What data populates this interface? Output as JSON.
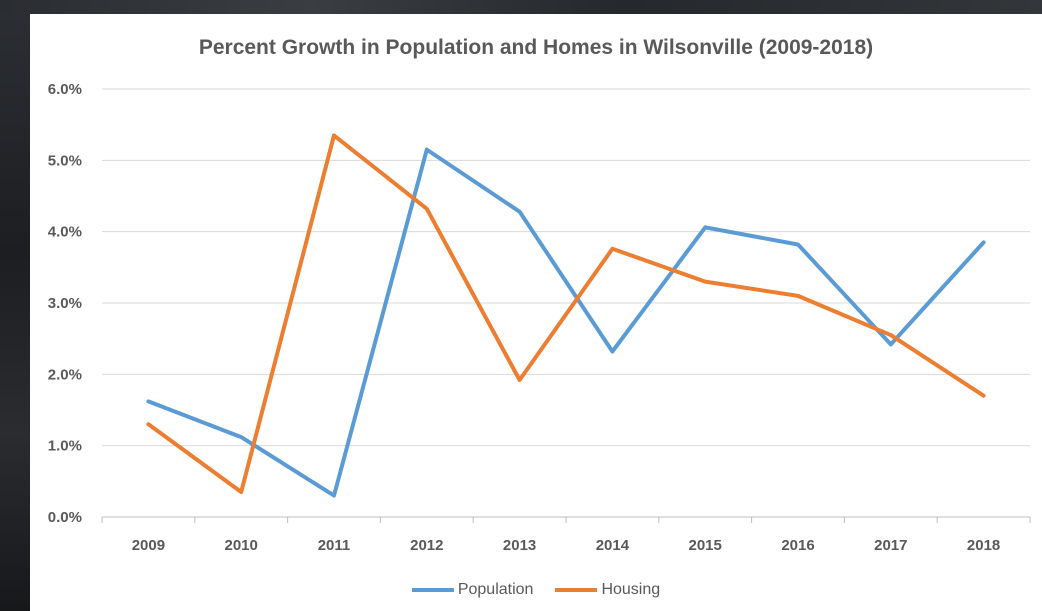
{
  "chart_data": {
    "type": "line",
    "title": "Percent Growth in Population and Homes in Wilsonville (2009-2018)",
    "xlabel": "",
    "ylabel": "",
    "categories": [
      "2009",
      "2010",
      "2011",
      "2012",
      "2013",
      "2014",
      "2015",
      "2016",
      "2017",
      "2018"
    ],
    "ylim": [
      0,
      6
    ],
    "yticks": [
      "0.0%",
      "1.0%",
      "2.0%",
      "3.0%",
      "4.0%",
      "5.0%",
      "6.0%"
    ],
    "grid": true,
    "legend_position": "bottom",
    "series": [
      {
        "name": "Population",
        "color": "#5b9bd5",
        "values": [
          1.62,
          1.12,
          0.3,
          5.15,
          4.28,
          2.32,
          4.06,
          3.82,
          2.42,
          3.85
        ]
      },
      {
        "name": "Housing",
        "color": "#ed7d31",
        "values": [
          1.3,
          0.35,
          5.35,
          4.32,
          1.92,
          3.76,
          3.3,
          3.1,
          2.55,
          1.7
        ]
      }
    ]
  }
}
